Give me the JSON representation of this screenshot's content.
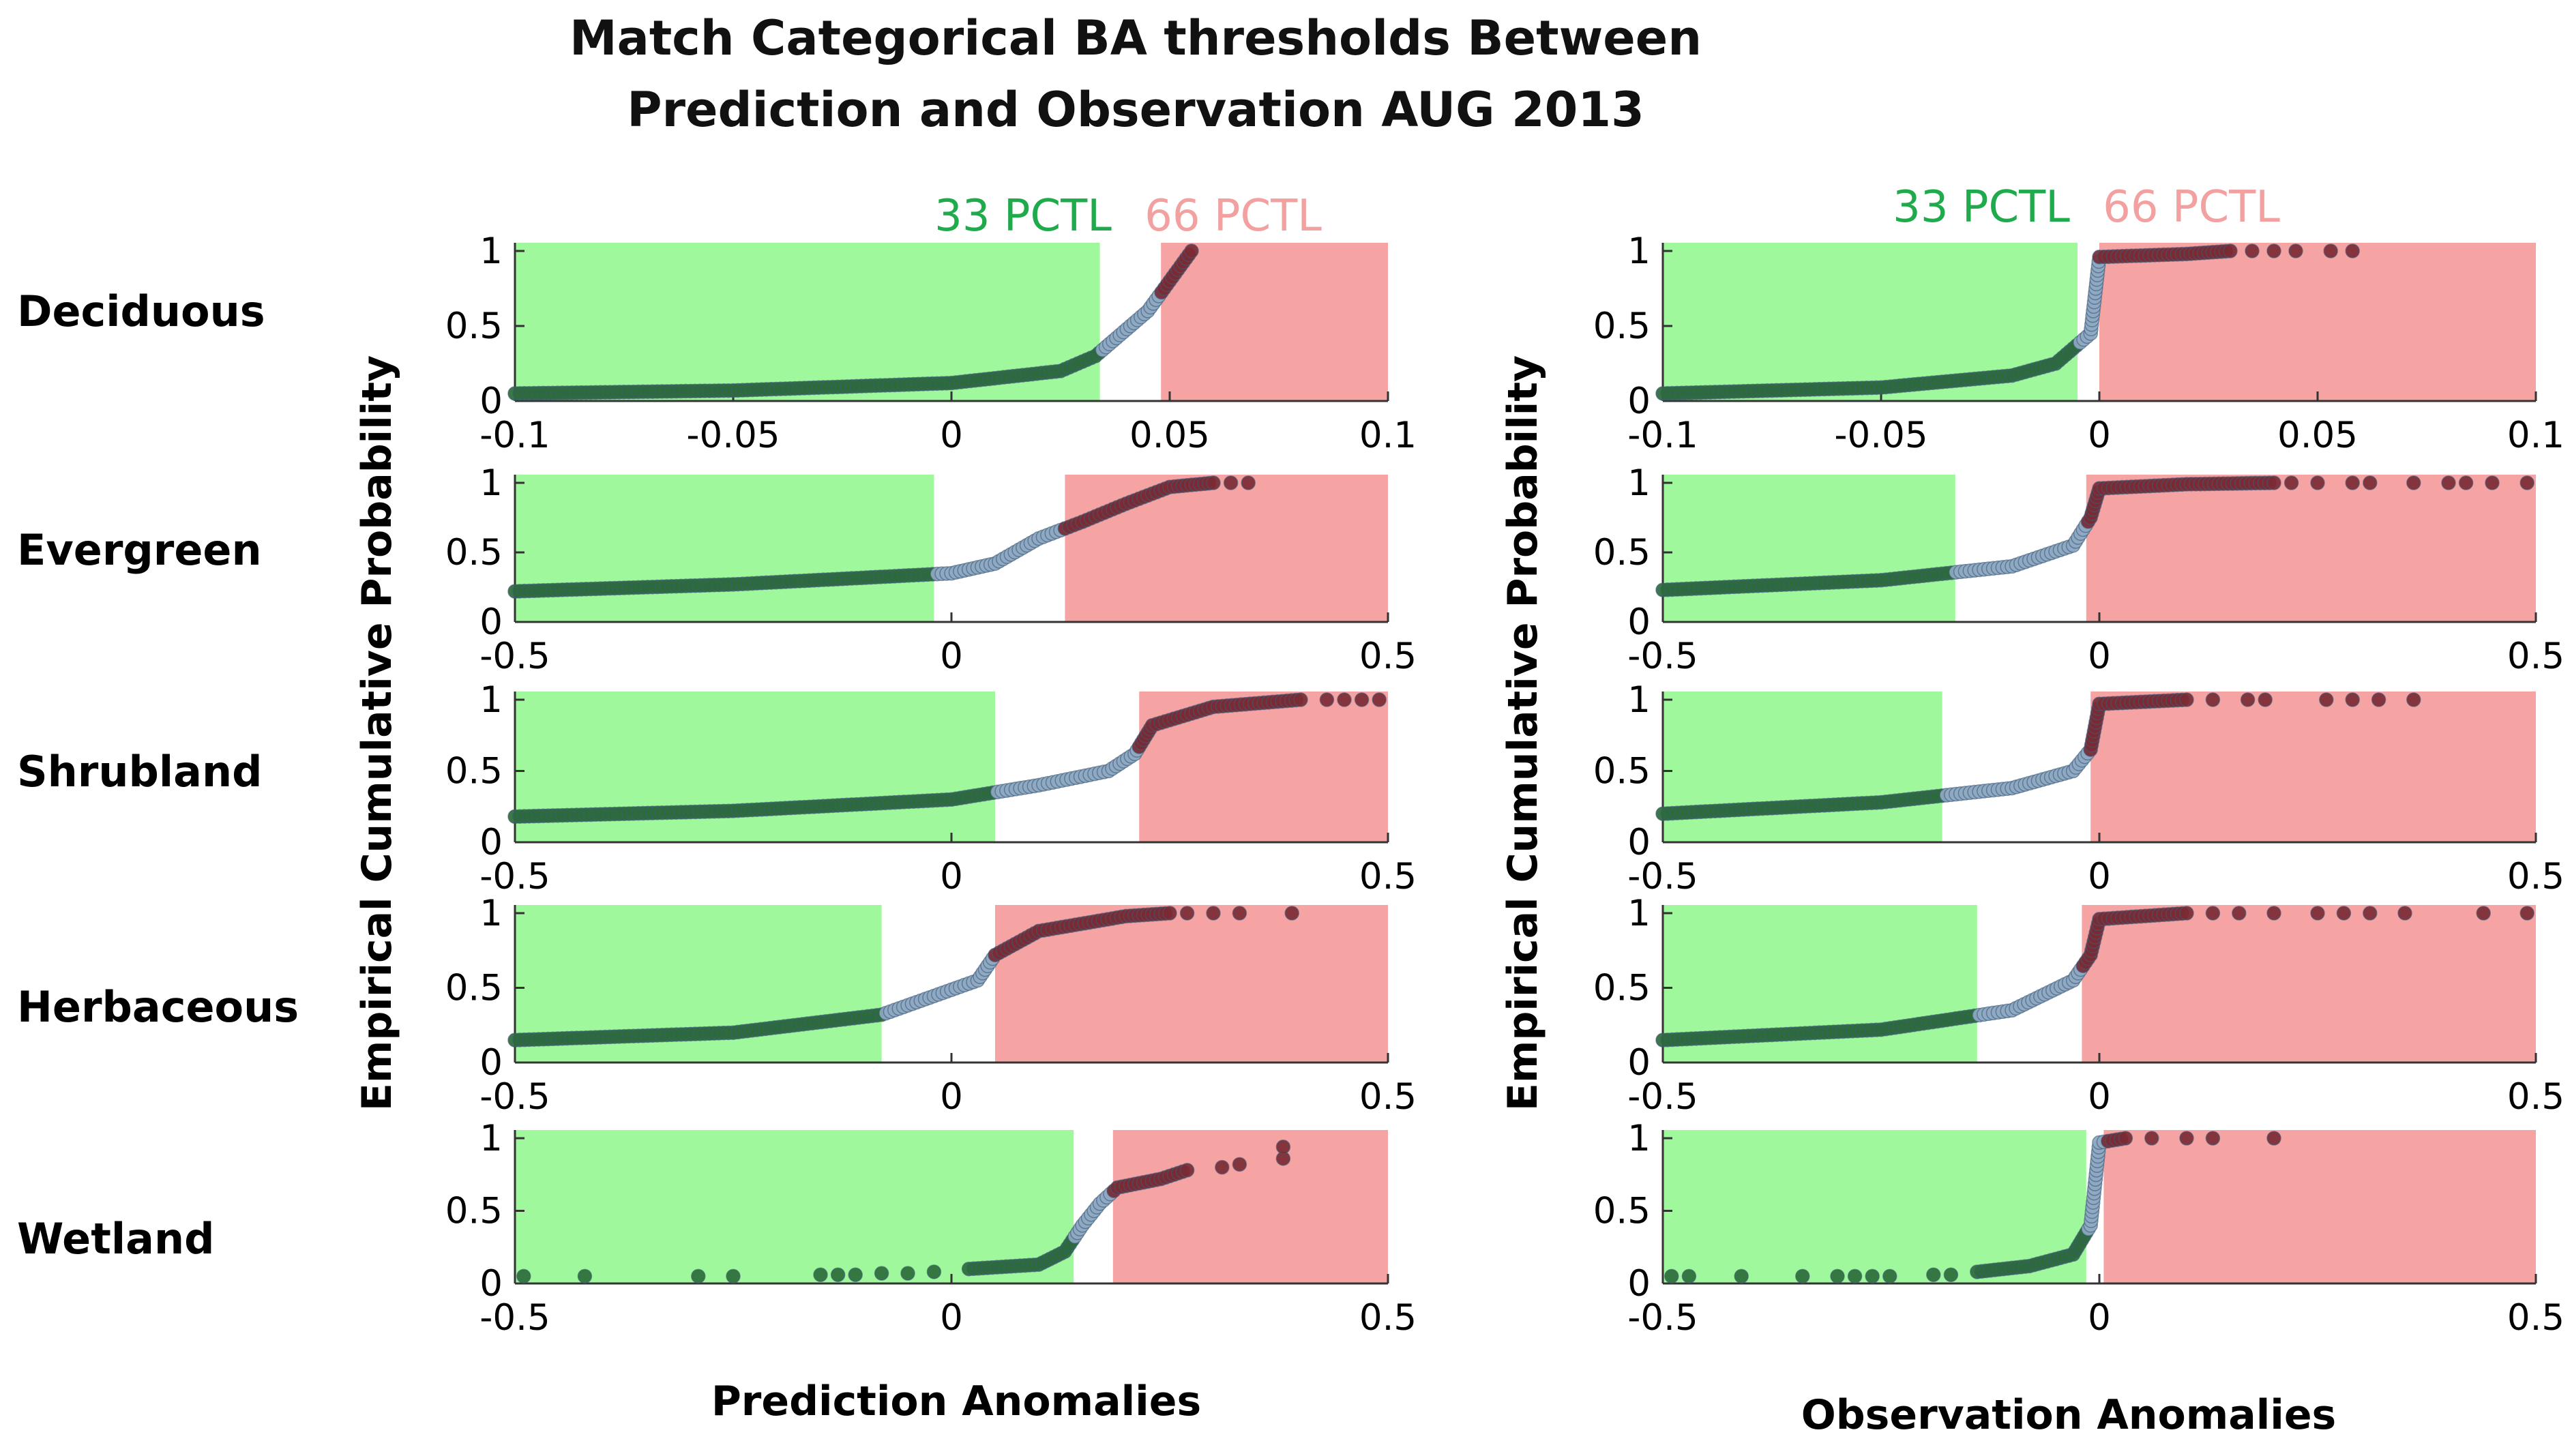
{
  "title": {
    "line1": "Match Categorical BA thresholds Between",
    "line2": "Prediction and Observation AUG 2013"
  },
  "percentile_labels": {
    "low": "33 PCTL",
    "high": "66 PCTL"
  },
  "colors": {
    "green_band": "#9ff89c",
    "red_band": "#f5a3a3",
    "green_text": "#1faa4b",
    "red_text": "#f2a0a0",
    "green_dot": "#2b6b3a",
    "blue_dot": "#8fa9c2",
    "red_dot": "#7a2a33"
  },
  "row_labels": [
    "Deciduous",
    "Evergreen",
    "Shrubland",
    "Herbaceous",
    "Wetland"
  ],
  "y_axis_title": "Empirical Cumulative Probability",
  "x_axis_titles": {
    "left": "Prediction Anomalies",
    "right": "Observation Anomalies"
  },
  "chart_data": [
    {
      "id": "pred-deciduous",
      "column": "Prediction",
      "row": "Deciduous",
      "type": "scatter",
      "xlim": [
        -0.1,
        0.1
      ],
      "ylim": [
        0,
        1
      ],
      "xticks": [
        -0.1,
        -0.05,
        0,
        0.05,
        0.1
      ],
      "xtick_labels": [
        "-0.1",
        "-0.05",
        "0",
        "0.05",
        "0.1"
      ],
      "yticks": [
        0,
        0.5,
        1
      ],
      "ytick_labels": [
        "0",
        "0.5",
        "1"
      ],
      "low_threshold": 0.034,
      "high_threshold": 0.048,
      "curve": [
        [
          -0.1,
          0.05
        ],
        [
          -0.05,
          0.07
        ],
        [
          0,
          0.12
        ],
        [
          0.025,
          0.2
        ],
        [
          0.033,
          0.3
        ],
        [
          0.045,
          0.6
        ],
        [
          0.055,
          1.0
        ]
      ],
      "extra_points": []
    },
    {
      "id": "obs-deciduous",
      "column": "Observation",
      "row": "Deciduous",
      "type": "scatter",
      "xlim": [
        -0.1,
        0.1
      ],
      "ylim": [
        0,
        1
      ],
      "xticks": [
        -0.1,
        -0.05,
        0,
        0.05,
        0.1
      ],
      "xtick_labels": [
        "-0.1",
        "-0.05",
        "0",
        "0.05",
        "0.1"
      ],
      "yticks": [
        0,
        0.5,
        1
      ],
      "ytick_labels": [
        "0",
        "0.5",
        "1"
      ],
      "low_threshold": -0.005,
      "high_threshold": 0.0,
      "curve": [
        [
          -0.1,
          0.05
        ],
        [
          -0.05,
          0.09
        ],
        [
          -0.02,
          0.17
        ],
        [
          -0.01,
          0.25
        ],
        [
          -0.002,
          0.45
        ],
        [
          0.0,
          0.96
        ],
        [
          0.02,
          0.98
        ],
        [
          0.03,
          1.0
        ]
      ],
      "extra_points": [
        [
          0.035,
          1.0
        ],
        [
          0.04,
          1.0
        ],
        [
          0.045,
          1.0
        ],
        [
          0.053,
          1.0
        ],
        [
          0.058,
          1.0
        ]
      ]
    },
    {
      "id": "pred-evergreen",
      "column": "Prediction",
      "row": "Evergreen",
      "type": "scatter",
      "xlim": [
        -0.5,
        0.5
      ],
      "ylim": [
        0,
        1
      ],
      "xticks": [
        -0.5,
        0,
        0.5
      ],
      "xtick_labels": [
        "-0.5",
        "0",
        "0.5"
      ],
      "yticks": [
        0,
        0.5,
        1
      ],
      "ytick_labels": [
        "0",
        "0.5",
        "1"
      ],
      "low_threshold": -0.02,
      "high_threshold": 0.13,
      "curve": [
        [
          -0.5,
          0.22
        ],
        [
          -0.25,
          0.27
        ],
        [
          0,
          0.35
        ],
        [
          0.05,
          0.42
        ],
        [
          0.1,
          0.6
        ],
        [
          0.15,
          0.72
        ],
        [
          0.2,
          0.85
        ],
        [
          0.25,
          0.97
        ],
        [
          0.3,
          1.0
        ]
      ],
      "extra_points": [
        [
          0.32,
          1.0
        ],
        [
          0.34,
          1.0
        ]
      ]
    },
    {
      "id": "obs-evergreen",
      "column": "Observation",
      "row": "Evergreen",
      "type": "scatter",
      "xlim": [
        -0.5,
        0.5
      ],
      "ylim": [
        0,
        1
      ],
      "xticks": [
        -0.5,
        0,
        0.5
      ],
      "xtick_labels": [
        "-0.5",
        "0",
        "0.5"
      ],
      "yticks": [
        0,
        0.5,
        1
      ],
      "ytick_labels": [
        "0",
        "0.5",
        "1"
      ],
      "low_threshold": -0.165,
      "high_threshold": -0.015,
      "curve": [
        [
          -0.5,
          0.23
        ],
        [
          -0.25,
          0.3
        ],
        [
          -0.1,
          0.4
        ],
        [
          -0.03,
          0.55
        ],
        [
          -0.01,
          0.75
        ],
        [
          0.0,
          0.96
        ],
        [
          0.1,
          0.99
        ],
        [
          0.2,
          1.0
        ]
      ],
      "extra_points": [
        [
          0.22,
          1.0
        ],
        [
          0.25,
          1.0
        ],
        [
          0.29,
          1.0
        ],
        [
          0.31,
          1.0
        ],
        [
          0.36,
          1.0
        ],
        [
          0.4,
          1.0
        ],
        [
          0.42,
          1.0
        ],
        [
          0.45,
          1.0
        ],
        [
          0.49,
          1.0
        ]
      ]
    },
    {
      "id": "pred-shrubland",
      "column": "Prediction",
      "row": "Shrubland",
      "type": "scatter",
      "xlim": [
        -0.5,
        0.5
      ],
      "ylim": [
        0,
        1
      ],
      "xticks": [
        -0.5,
        0,
        0.5
      ],
      "xtick_labels": [
        "-0.5",
        "0",
        "0.5"
      ],
      "yticks": [
        0,
        0.5,
        1
      ],
      "ytick_labels": [
        "0",
        "0.5",
        "1"
      ],
      "low_threshold": 0.05,
      "high_threshold": 0.215,
      "curve": [
        [
          -0.5,
          0.18
        ],
        [
          -0.25,
          0.22
        ],
        [
          0,
          0.3
        ],
        [
          0.1,
          0.4
        ],
        [
          0.18,
          0.5
        ],
        [
          0.21,
          0.62
        ],
        [
          0.23,
          0.82
        ],
        [
          0.3,
          0.95
        ],
        [
          0.4,
          1.0
        ]
      ],
      "extra_points": [
        [
          0.43,
          1.0
        ],
        [
          0.45,
          1.0
        ],
        [
          0.47,
          1.0
        ],
        [
          0.49,
          1.0
        ]
      ]
    },
    {
      "id": "obs-shrubland",
      "column": "Observation",
      "row": "Shrubland",
      "type": "scatter",
      "xlim": [
        -0.5,
        0.5
      ],
      "ylim": [
        0,
        1
      ],
      "xticks": [
        -0.5,
        0,
        0.5
      ],
      "xtick_labels": [
        "-0.5",
        "0",
        "0.5"
      ],
      "yticks": [
        0,
        0.5,
        1
      ],
      "ytick_labels": [
        "0",
        "0.5",
        "1"
      ],
      "low_threshold": -0.18,
      "high_threshold": -0.01,
      "curve": [
        [
          -0.5,
          0.2
        ],
        [
          -0.25,
          0.28
        ],
        [
          -0.1,
          0.38
        ],
        [
          -0.03,
          0.5
        ],
        [
          -0.01,
          0.65
        ],
        [
          0.0,
          0.97
        ],
        [
          0.1,
          1.0
        ]
      ],
      "extra_points": [
        [
          0.13,
          1.0
        ],
        [
          0.17,
          1.0
        ],
        [
          0.19,
          1.0
        ],
        [
          0.26,
          1.0
        ],
        [
          0.29,
          1.0
        ],
        [
          0.32,
          1.0
        ],
        [
          0.36,
          1.0
        ]
      ]
    },
    {
      "id": "pred-herbaceous",
      "column": "Prediction",
      "row": "Herbaceous",
      "type": "scatter",
      "xlim": [
        -0.5,
        0.5
      ],
      "ylim": [
        0,
        1
      ],
      "xticks": [
        -0.5,
        0,
        0.5
      ],
      "xtick_labels": [
        "-0.5",
        "0",
        "0.5"
      ],
      "yticks": [
        0,
        0.5,
        1
      ],
      "ytick_labels": [
        "0",
        "0.5",
        "1"
      ],
      "low_threshold": -0.08,
      "high_threshold": 0.05,
      "curve": [
        [
          -0.5,
          0.15
        ],
        [
          -0.25,
          0.2
        ],
        [
          -0.08,
          0.32
        ],
        [
          0.03,
          0.55
        ],
        [
          0.05,
          0.72
        ],
        [
          0.1,
          0.88
        ],
        [
          0.2,
          0.98
        ],
        [
          0.25,
          1.0
        ]
      ],
      "extra_points": [
        [
          0.27,
          1.0
        ],
        [
          0.3,
          1.0
        ],
        [
          0.33,
          1.0
        ],
        [
          0.39,
          1.0
        ]
      ]
    },
    {
      "id": "obs-herbaceous",
      "column": "Observation",
      "row": "Herbaceous",
      "type": "scatter",
      "xlim": [
        -0.5,
        0.5
      ],
      "ylim": [
        0,
        1
      ],
      "xticks": [
        -0.5,
        0,
        0.5
      ],
      "xtick_labels": [
        "-0.5",
        "0",
        "0.5"
      ],
      "yticks": [
        0,
        0.5,
        1
      ],
      "ytick_labels": [
        "0",
        "0.5",
        "1"
      ],
      "low_threshold": -0.14,
      "high_threshold": -0.02,
      "curve": [
        [
          -0.5,
          0.15
        ],
        [
          -0.25,
          0.22
        ],
        [
          -0.1,
          0.35
        ],
        [
          -0.03,
          0.55
        ],
        [
          -0.01,
          0.72
        ],
        [
          0.0,
          0.96
        ],
        [
          0.1,
          1.0
        ]
      ],
      "extra_points": [
        [
          0.13,
          1.0
        ],
        [
          0.16,
          1.0
        ],
        [
          0.2,
          1.0
        ],
        [
          0.25,
          1.0
        ],
        [
          0.28,
          1.0
        ],
        [
          0.31,
          1.0
        ],
        [
          0.35,
          1.0
        ],
        [
          0.44,
          1.0
        ],
        [
          0.49,
          1.0
        ]
      ]
    },
    {
      "id": "pred-wetland",
      "column": "Prediction",
      "row": "Wetland",
      "type": "scatter",
      "xlim": [
        -0.5,
        0.5
      ],
      "ylim": [
        0,
        1
      ],
      "xticks": [
        -0.5,
        0,
        0.5
      ],
      "xtick_labels": [
        "-0.5",
        "0",
        "0.5"
      ],
      "yticks": [
        0,
        0.5,
        1
      ],
      "ytick_labels": [
        "0",
        "0.5",
        "1"
      ],
      "low_threshold": 0.14,
      "high_threshold": 0.185,
      "curve": [
        [
          0.02,
          0.1
        ],
        [
          0.1,
          0.13
        ],
        [
          0.13,
          0.22
        ],
        [
          0.15,
          0.4
        ],
        [
          0.17,
          0.55
        ],
        [
          0.19,
          0.66
        ],
        [
          0.24,
          0.72
        ],
        [
          0.27,
          0.78
        ]
      ],
      "extra_points": [
        [
          -0.49,
          0.05
        ],
        [
          -0.42,
          0.05
        ],
        [
          -0.29,
          0.05
        ],
        [
          -0.25,
          0.05
        ],
        [
          -0.15,
          0.06
        ],
        [
          -0.13,
          0.06
        ],
        [
          -0.11,
          0.06
        ],
        [
          -0.08,
          0.07
        ],
        [
          -0.05,
          0.07
        ],
        [
          -0.02,
          0.08
        ],
        [
          0.31,
          0.8
        ],
        [
          0.33,
          0.82
        ],
        [
          0.38,
          0.86
        ],
        [
          0.38,
          0.94
        ]
      ]
    },
    {
      "id": "obs-wetland",
      "column": "Observation",
      "row": "Wetland",
      "type": "scatter",
      "xlim": [
        -0.5,
        0.5
      ],
      "ylim": [
        0,
        1
      ],
      "xticks": [
        -0.5,
        0,
        0.5
      ],
      "xtick_labels": [
        "-0.5",
        "0",
        "0.5"
      ],
      "yticks": [
        0,
        0.5,
        1
      ],
      "ytick_labels": [
        "0",
        "0.5",
        "1"
      ],
      "low_threshold": -0.015,
      "high_threshold": 0.005,
      "curve": [
        [
          -0.14,
          0.08
        ],
        [
          -0.08,
          0.12
        ],
        [
          -0.03,
          0.2
        ],
        [
          -0.01,
          0.4
        ],
        [
          0.0,
          0.97
        ],
        [
          0.03,
          1.0
        ]
      ],
      "extra_points": [
        [
          -0.49,
          0.05
        ],
        [
          -0.47,
          0.05
        ],
        [
          -0.41,
          0.05
        ],
        [
          -0.34,
          0.05
        ],
        [
          -0.3,
          0.05
        ],
        [
          -0.28,
          0.05
        ],
        [
          -0.26,
          0.05
        ],
        [
          -0.24,
          0.05
        ],
        [
          -0.19,
          0.06
        ],
        [
          -0.17,
          0.06
        ],
        [
          0.06,
          1.0
        ],
        [
          0.1,
          1.0
        ],
        [
          0.13,
          1.0
        ],
        [
          0.2,
          1.0
        ]
      ]
    }
  ]
}
